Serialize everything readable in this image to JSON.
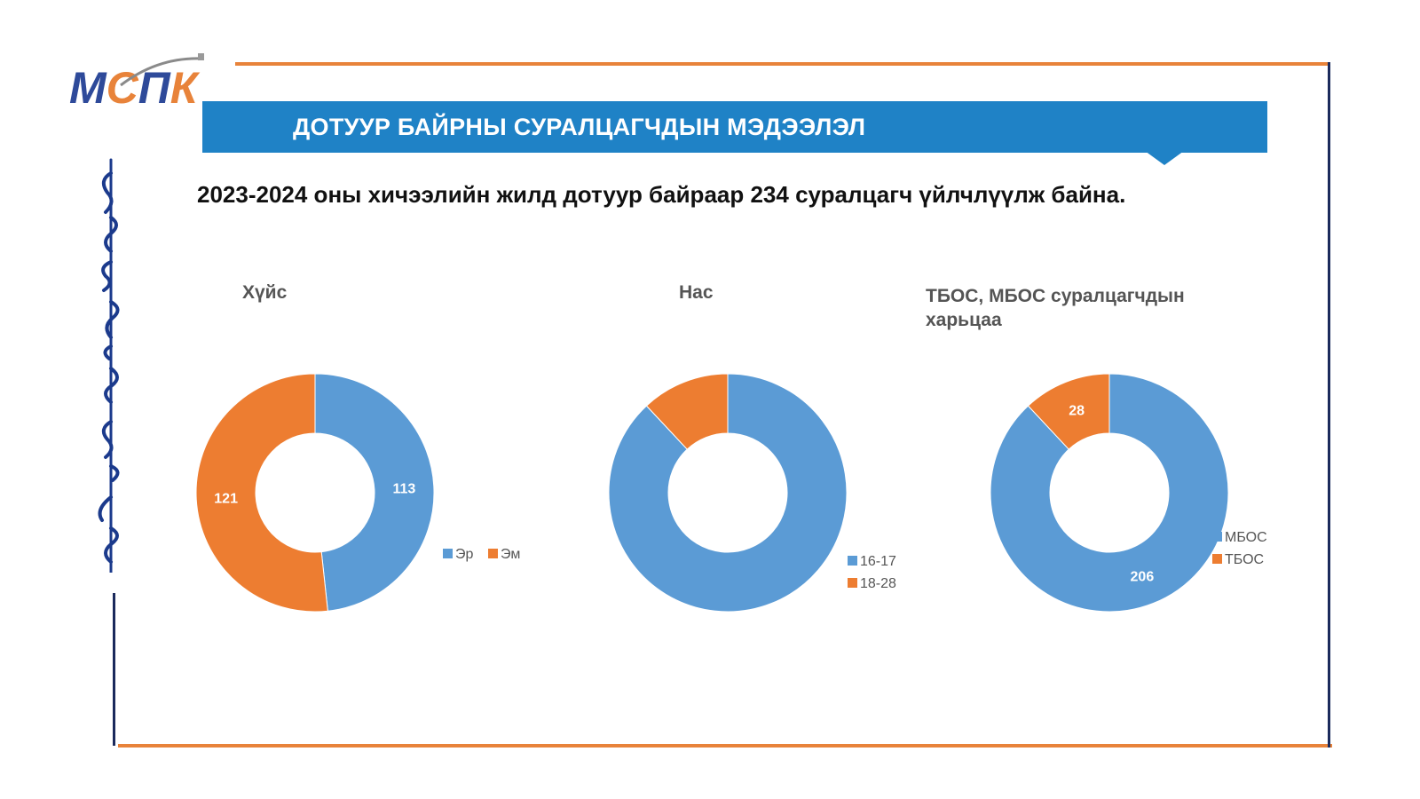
{
  "logo": {
    "text": "МСПК"
  },
  "banner": {
    "title": "ДОТУУР БАЙРНЫ СУРАЛЦАГЧДЫН МЭДЭЭЛЭЛ"
  },
  "subtitle": "2023-2024 оны хичээлийн жилд дотуур байраар 234 суралцагч үйлчлүүлж байна.",
  "colors": {
    "blue": "#5B9BD5",
    "orange": "#ED7D31",
    "banner": "#1F82C6",
    "accent_line": "#E8833A",
    "frame_navy": "#1B2A5C"
  },
  "chart_data": [
    {
      "type": "pie",
      "variant": "donut",
      "title": "Хүйс",
      "categories": [
        "Эр",
        "Эм"
      ],
      "values": [
        113,
        121
      ],
      "data_labels": [
        "113",
        "121"
      ],
      "colors": [
        "#5B9BD5",
        "#ED7D31"
      ],
      "legend": "right-bottom"
    },
    {
      "type": "pie",
      "variant": "donut",
      "title": "Нас",
      "categories": [
        "16-17",
        "18-28"
      ],
      "values": [
        206,
        28
      ],
      "data_labels": [
        "",
        ""
      ],
      "colors": [
        "#5B9BD5",
        "#ED7D31"
      ],
      "legend": "right-bottom"
    },
    {
      "type": "pie",
      "variant": "donut",
      "title": "ТБОС, МБОС суралцагчдын харьцаа",
      "categories": [
        "МБОС",
        "ТБОС"
      ],
      "values": [
        206,
        28
      ],
      "data_labels": [
        "206",
        "28"
      ],
      "colors": [
        "#5B9BD5",
        "#ED7D31"
      ],
      "legend": "right"
    }
  ]
}
